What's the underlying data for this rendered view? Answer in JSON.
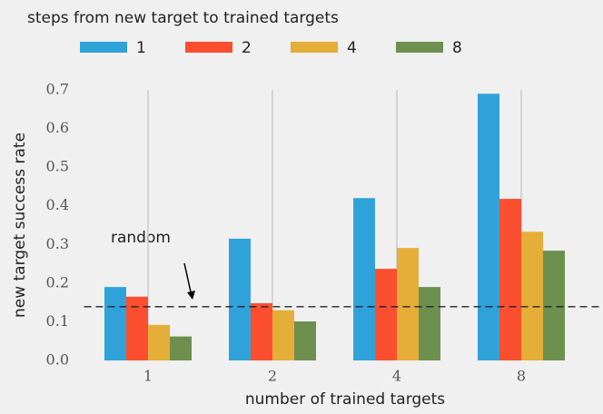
{
  "chart_data": {
    "type": "bar",
    "xlabel": "number of trained targets",
    "ylabel": "new target success rate",
    "legend_title": "steps from new target to trained targets",
    "categories": [
      "1",
      "2",
      "4",
      "8"
    ],
    "series": [
      {
        "name": "1",
        "color": "#30a2da",
        "values": [
          0.19,
          0.315,
          0.42,
          0.69
        ]
      },
      {
        "name": "2",
        "color": "#fc4f30",
        "values": [
          0.165,
          0.148,
          0.237,
          0.418
        ]
      },
      {
        "name": "4",
        "color": "#e5ae38",
        "values": [
          0.092,
          0.13,
          0.291,
          0.333
        ]
      },
      {
        "name": "8",
        "color": "#6d904f",
        "values": [
          0.062,
          0.101,
          0.19,
          0.284
        ]
      }
    ],
    "hline": 0.139,
    "annotation": "random",
    "ylim": [
      0,
      0.7
    ],
    "yticks": [
      {
        "value": 0,
        "label": "0.0"
      },
      0.1,
      0.2,
      0.3,
      0.4,
      0.5,
      0.6,
      0.7
    ],
    "grid": "x",
    "legend": "top"
  }
}
